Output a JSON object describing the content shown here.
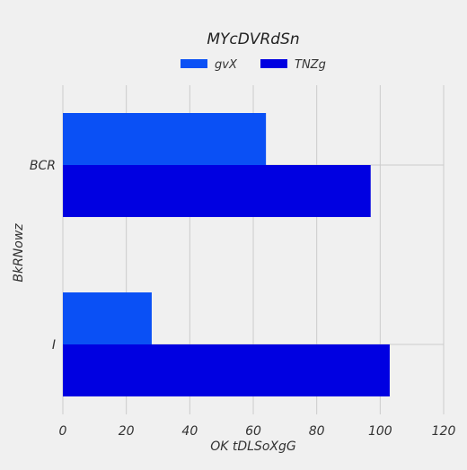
{
  "chart_data": {
    "type": "bar",
    "orientation": "horizontal",
    "title": "MYcDVRdSn",
    "xlabel": "OK tDLSoXgG",
    "ylabel": "BkRNowz",
    "categories": [
      "BCR",
      "I"
    ],
    "series": [
      {
        "name": "gvX",
        "values": [
          64,
          28
        ],
        "color": "#0a50f5"
      },
      {
        "name": "TNZg",
        "values": [
          97,
          103
        ],
        "color": "#0000e1"
      }
    ],
    "xlim": [
      0,
      120
    ],
    "xticks": [
      "0",
      "20",
      "40",
      "60",
      "80",
      "100",
      "120"
    ],
    "grid": true,
    "legend_position": "top-center",
    "background": "#f0f0f0",
    "grid_color": "#cbcbcb"
  }
}
